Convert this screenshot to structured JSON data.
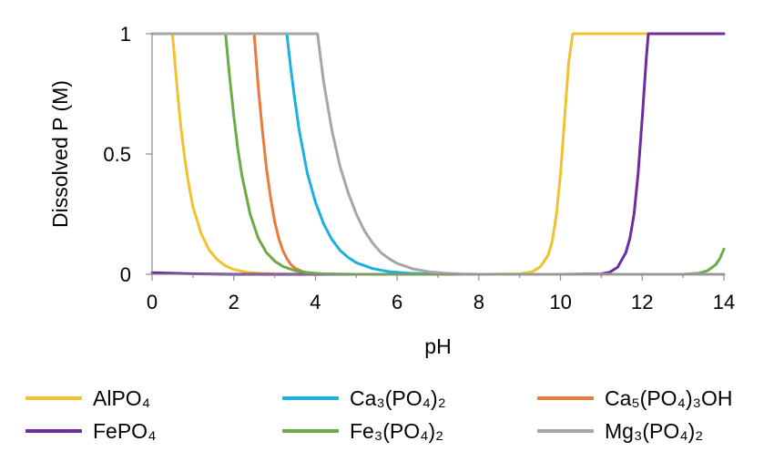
{
  "chart_data": {
    "type": "line",
    "title": "",
    "xlabel": "pH",
    "ylabel": "Dissolved P (M)",
    "xlim": [
      0,
      14
    ],
    "ylim": [
      0,
      1
    ],
    "xticks": [
      "0",
      "2",
      "4",
      "6",
      "8",
      "10",
      "12",
      "14"
    ],
    "yticks": [
      "0",
      "0.5",
      "1"
    ],
    "grid": false,
    "legend_position": "bottom",
    "series": [
      {
        "name": "AlPO₄",
        "color": "#F2C12E",
        "x": [
          0,
          0.5,
          0.6,
          0.7,
          0.8,
          0.9,
          1.0,
          1.2,
          1.4,
          1.6,
          1.8,
          2.0,
          2.3,
          2.6,
          3.0,
          4,
          5,
          6,
          7,
          8,
          9,
          9.3,
          9.5,
          9.7,
          9.8,
          9.9,
          10.0,
          10.1,
          10.2,
          10.3,
          11,
          12,
          14
        ],
        "y": [
          1,
          1,
          0.8,
          0.62,
          0.48,
          0.37,
          0.28,
          0.17,
          0.1,
          0.06,
          0.035,
          0.02,
          0.009,
          0.004,
          0.001,
          0,
          0,
          0,
          0,
          0,
          0.002,
          0.01,
          0.03,
          0.08,
          0.14,
          0.25,
          0.42,
          0.65,
          0.88,
          1,
          1,
          1,
          1
        ]
      },
      {
        "name": "Ca₃(PO₄)₂",
        "color": "#1CB0E0",
        "x": [
          0,
          3.3,
          3.4,
          3.5,
          3.6,
          3.8,
          4.0,
          4.2,
          4.4,
          4.6,
          4.8,
          5.0,
          5.4,
          5.8,
          6.3,
          7,
          8,
          10,
          12,
          14
        ],
        "y": [
          1,
          1,
          0.85,
          0.72,
          0.6,
          0.42,
          0.3,
          0.21,
          0.145,
          0.1,
          0.07,
          0.048,
          0.024,
          0.011,
          0.004,
          0.001,
          0,
          0,
          0,
          0
        ]
      },
      {
        "name": "Ca₅(PO₄)₃OH",
        "color": "#EA7A3A",
        "x": [
          0,
          2.5,
          2.6,
          2.7,
          2.8,
          2.9,
          3.0,
          3.1,
          3.2,
          3.3,
          3.4,
          3.5,
          3.7,
          4.0,
          4.5,
          6,
          8,
          14
        ],
        "y": [
          1,
          1,
          0.78,
          0.6,
          0.44,
          0.32,
          0.22,
          0.15,
          0.1,
          0.065,
          0.04,
          0.025,
          0.01,
          0.003,
          0,
          0,
          0,
          0
        ]
      },
      {
        "name": "FePO₄",
        "color": "#6E2D9E",
        "x": [
          0,
          0.5,
          1.0,
          1.5,
          2,
          3,
          4,
          6,
          8,
          10,
          11,
          11.2,
          11.4,
          11.6,
          11.7,
          11.8,
          11.9,
          12.0,
          12.1,
          12.15,
          13,
          14
        ],
        "y": [
          0.007,
          0.004,
          0.002,
          0.001,
          0,
          0,
          0,
          0,
          0,
          0,
          0.002,
          0.008,
          0.03,
          0.09,
          0.15,
          0.25,
          0.42,
          0.65,
          0.9,
          1,
          1,
          1
        ]
      },
      {
        "name": "Fe₃(PO₄)₂",
        "color": "#6AAB45",
        "x": [
          0,
          1.8,
          1.9,
          2.0,
          2.1,
          2.2,
          2.4,
          2.6,
          2.8,
          3.0,
          3.2,
          3.5,
          3.8,
          4.2,
          5,
          6,
          8,
          10,
          12,
          13,
          13.4,
          13.6,
          13.8,
          13.9,
          14.0
        ],
        "y": [
          1,
          1,
          0.82,
          0.66,
          0.52,
          0.41,
          0.25,
          0.15,
          0.09,
          0.055,
          0.033,
          0.015,
          0.007,
          0.002,
          0,
          0,
          0,
          0,
          0,
          0,
          0.005,
          0.015,
          0.04,
          0.065,
          0.105
        ]
      },
      {
        "name": "Mg₃(PO₄)₂",
        "color": "#A6A6A6",
        "x": [
          0,
          4.05,
          4.2,
          4.4,
          4.6,
          4.8,
          5.0,
          5.2,
          5.4,
          5.6,
          5.8,
          6.0,
          6.4,
          6.8,
          7.2,
          7.6,
          8,
          10,
          12,
          14
        ],
        "y": [
          1,
          1,
          0.8,
          0.6,
          0.45,
          0.34,
          0.25,
          0.18,
          0.13,
          0.09,
          0.065,
          0.045,
          0.022,
          0.01,
          0.004,
          0.001,
          0,
          0,
          0,
          0
        ]
      }
    ]
  },
  "legend": {
    "items": [
      {
        "label": "AlPO₄",
        "color": "#F2C12E"
      },
      {
        "label": "Ca₃(PO₄)₂",
        "color": "#1CB0E0"
      },
      {
        "label": "Ca₅(PO₄)₃OH",
        "color": "#EA7A3A"
      },
      {
        "label": "FePO₄",
        "color": "#6E2D9E"
      },
      {
        "label": "Fe₃(PO₄)₂",
        "color": "#6AAB45"
      },
      {
        "label": "Mg₃(PO₄)₂",
        "color": "#A6A6A6"
      }
    ]
  }
}
